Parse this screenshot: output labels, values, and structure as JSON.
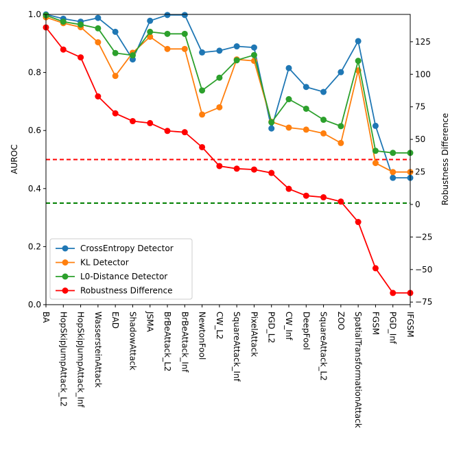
{
  "chart_data": {
    "type": "line",
    "categories": [
      "BA",
      "HopSkipJumpAttack_L2",
      "HopSkipJumpAttack_Inf",
      "WassersteinAttack",
      "EAD",
      "ShadowAttack",
      "JSMA",
      "BrBeAttack_L2",
      "BrBeAttack_Inf",
      "NewtonFool",
      "CW_L2",
      "SquareAttack_Inf",
      "PixelAttack",
      "PGD_L2",
      "CW_Inf",
      "DeepFool",
      "SquareAttack_L2",
      "ZOO",
      "SpatialTransformationAttack",
      "FGSM",
      "PGD_Inf",
      "IFGSM"
    ],
    "ylabel_left": "AUROC",
    "ylabel_right": "Robustness Difference",
    "ylim_left": [
      0.0,
      1.0
    ],
    "ylim_right": [
      -77,
      146
    ],
    "yticks_left": [
      "0.0",
      "0.2",
      "0.4",
      "0.6",
      "0.8",
      "1.0"
    ],
    "yticks_right": [
      "−75",
      "−50",
      "−25",
      "0",
      "25",
      "50",
      "75",
      "100",
      "125"
    ],
    "grid": false,
    "legend_position": "lower-left",
    "series": [
      {
        "name": "CrossEntropy Detector",
        "axis": "left",
        "color": "#1f77b4",
        "values": [
          1.0,
          0.985,
          0.975,
          0.988,
          0.94,
          0.845,
          0.978,
          0.998,
          0.998,
          0.869,
          0.875,
          0.89,
          0.886,
          0.607,
          0.815,
          0.75,
          0.733,
          0.801,
          0.908,
          0.616,
          0.437,
          0.437
        ]
      },
      {
        "name": "KL Detector",
        "axis": "left",
        "color": "#ff7f0e",
        "values": [
          0.99,
          0.97,
          0.956,
          0.904,
          0.788,
          0.868,
          0.923,
          0.881,
          0.881,
          0.655,
          0.68,
          0.845,
          0.84,
          0.63,
          0.61,
          0.603,
          0.59,
          0.557,
          0.807,
          0.488,
          0.457,
          0.457
        ]
      },
      {
        "name": "L0-Distance Detector",
        "axis": "left",
        "color": "#2ca02c",
        "values": [
          0.997,
          0.975,
          0.965,
          0.952,
          0.867,
          0.859,
          0.94,
          0.933,
          0.933,
          0.738,
          0.782,
          0.842,
          0.86,
          0.628,
          0.708,
          0.675,
          0.637,
          0.615,
          0.84,
          0.53,
          0.523,
          0.523
        ]
      },
      {
        "name": "Robustness Difference",
        "axis": "right",
        "color": "#ff0000",
        "values": [
          136,
          119,
          113,
          83,
          70,
          64,
          62.5,
          56.5,
          55.5,
          44,
          29.5,
          27.5,
          26.8,
          24.2,
          12,
          6.7,
          5.5,
          2.2,
          -13.5,
          -49,
          -68,
          -68
        ]
      }
    ],
    "reference_lines": [
      {
        "axis": "left",
        "value": 0.5,
        "color": "#ff0000",
        "style": "dashed"
      },
      {
        "axis": "left",
        "value": 0.35,
        "color": "#008000",
        "style": "dashed"
      }
    ]
  }
}
